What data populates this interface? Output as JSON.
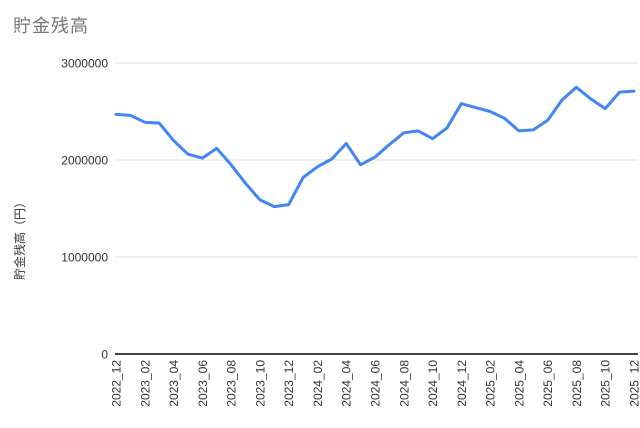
{
  "title": "貯金残高",
  "chart_data": {
    "type": "line",
    "title": "貯金残高",
    "xlabel": "",
    "ylabel": "貯金残高（円）",
    "legend_position": "none",
    "grid": true,
    "ylim": [
      0,
      3000000
    ],
    "yticks": [
      0,
      1000000,
      2000000,
      3000000
    ],
    "x_tick_step": 2,
    "x_tick_labels": [
      "2022_12",
      "2023_02",
      "2023_04",
      "2023_06",
      "2023_08",
      "2023_10",
      "2023_12",
      "2024_02",
      "2024_04",
      "2024_06",
      "2024_08",
      "2024_10",
      "2024_12",
      "2025_02",
      "2025_04",
      "2025_06",
      "2025_08",
      "2025_10",
      "2025_12"
    ],
    "categories": [
      "2022_12",
      "2023_01",
      "2023_02",
      "2023_03",
      "2023_04",
      "2023_05",
      "2023_06",
      "2023_07",
      "2023_08",
      "2023_09",
      "2023_10",
      "2023_11",
      "2023_12",
      "2024_01",
      "2024_02",
      "2024_03",
      "2024_04",
      "2024_05",
      "2024_06",
      "2024_07",
      "2024_08",
      "2024_09",
      "2024_10",
      "2024_11",
      "2024_12",
      "2025_01",
      "2025_02",
      "2025_03",
      "2025_04",
      "2025_05",
      "2025_06",
      "2025_07",
      "2025_08",
      "2025_09",
      "2025_10",
      "2025_11",
      "2025_12"
    ],
    "values": [
      2470000,
      2460000,
      2390000,
      2380000,
      2200000,
      2060000,
      2020000,
      2120000,
      1950000,
      1760000,
      1590000,
      1520000,
      1540000,
      1820000,
      1930000,
      2010000,
      2170000,
      1950000,
      2030000,
      2160000,
      2280000,
      2300000,
      2220000,
      2330000,
      2580000,
      2540000,
      2500000,
      2430000,
      2300000,
      2310000,
      2410000,
      2620000,
      2750000,
      2630000,
      2530000,
      2700000,
      2710000
    ],
    "line_color": "#4285f4",
    "gridline_color": "#e0e0e0",
    "baseline_color": "#424242",
    "axis_text_color": "#333333",
    "title_color": "#757575"
  }
}
